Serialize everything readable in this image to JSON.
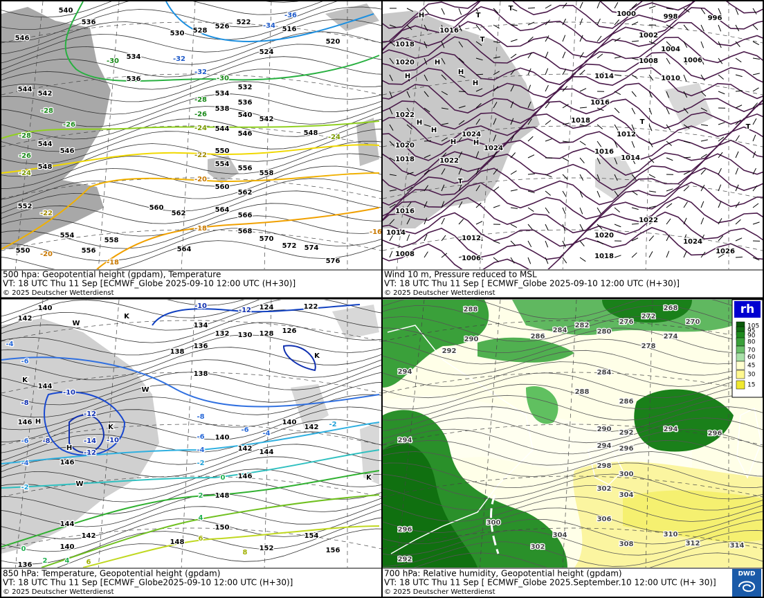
{
  "panels": [
    {
      "caption": {
        "title": "500 hpa: Geopotential height (gpdam), Temperature",
        "valid_time": "VT: 18 UTC Thu  11 Sep [ECMWF_Globe 2025-09-10 12:00 UTC  (H+30)]",
        "copyright": "© 2025 Deutscher Wetterdienst"
      },
      "contour_labels": [
        540,
        536,
        546,
        530,
        528,
        526,
        522,
        516,
        520,
        524,
        534,
        536,
        532,
        534,
        536,
        538,
        540,
        542,
        544,
        546,
        548,
        544,
        542,
        544,
        546,
        548,
        550,
        554,
        556,
        558,
        552,
        560,
        562,
        560,
        562,
        564,
        566,
        568,
        570,
        572,
        574,
        576,
        550,
        554,
        556,
        558,
        564
      ],
      "temperature_labels": [
        -36,
        -34,
        -32,
        -32,
        -30,
        -30,
        -28,
        -28,
        -26,
        -26,
        -28,
        -24,
        -26,
        -24,
        -22,
        -24,
        -20,
        -22,
        -18,
        -20,
        -18,
        -16
      ]
    },
    {
      "caption": {
        "title": "Wind 10 m, Pressure reduced to MSL",
        "valid_time": "VT: 18 UTC Thu  11 Sep [ ECMWF_Globe 2025-09-10 12:00 UTC (H+30)]",
        "copyright": "© 2025 Deutscher Wetterdienst"
      },
      "contour_labels": [
        1000,
        998,
        996,
        1002,
        1004,
        1006,
        1008,
        1010,
        1014,
        1016,
        1018,
        1020,
        1016,
        1018,
        1012,
        1014,
        1016,
        1022,
        1024,
        1024,
        1020,
        1018,
        1022,
        1016,
        1014,
        1012,
        1008,
        1006,
        1022,
        1020,
        1018,
        1024,
        1026
      ],
      "symbols": [
        "H",
        "H",
        "H",
        "H",
        "H",
        "H",
        "H",
        "H",
        "H",
        "T",
        "T",
        "T",
        "T",
        "T",
        "T"
      ]
    },
    {
      "caption": {
        "title": "850 hPa:  Temperature, Geopotential height (gpdam)",
        "valid_time": "VT: 18 UTC Thu  11 Sep [ECMWF_Globe2025-09-10 12:00 UTC (H+30)]",
        "copyright": "© 2025 Deutscher Wetterdienst"
      },
      "contour_labels": [
        140,
        142,
        124,
        122,
        134,
        132,
        130,
        128,
        126,
        138,
        136,
        138,
        144,
        146,
        140,
        142,
        140,
        142,
        144,
        146,
        146,
        148,
        150,
        136,
        140,
        142,
        144,
        148,
        152,
        154,
        156
      ],
      "temperature_labels": [
        -10,
        -12,
        -4,
        -6,
        -8,
        -10,
        -12,
        -6,
        -8,
        -14,
        -10,
        -12,
        -4,
        -2,
        -8,
        -6,
        -4,
        -6,
        -4,
        -2,
        -2,
        0,
        2,
        4,
        6,
        8,
        2,
        4,
        6,
        0
      ],
      "symbols": [
        "H",
        "H",
        "K",
        "K",
        "K",
        "W",
        "W",
        "W",
        "K",
        "K"
      ]
    },
    {
      "caption": {
        "title": "700 hPa:  Relative humidity, Geopotential height (gpdam)",
        "valid_time": "VT: 18 UTC Thu  11 Sep [ ECMWF_Globe  2025.September.10 12:00 UTC (H+ 30)]",
        "copyright": "© 2025 Deutscher Wetterdienst"
      },
      "contour_labels": [
        288,
        276,
        272,
        268,
        270,
        274,
        278,
        280,
        284,
        282,
        286,
        290,
        292,
        294,
        288,
        284,
        286,
        294,
        296,
        290,
        292,
        294,
        296,
        298,
        300,
        302,
        304,
        306,
        294,
        300,
        296,
        292,
        304,
        302,
        308,
        310,
        312,
        314
      ]
    }
  ],
  "legend": {
    "title": "rh",
    "levels": [
      105,
      95,
      90,
      80,
      70,
      60,
      45,
      30,
      15
    ]
  },
  "logo": "DWD"
}
